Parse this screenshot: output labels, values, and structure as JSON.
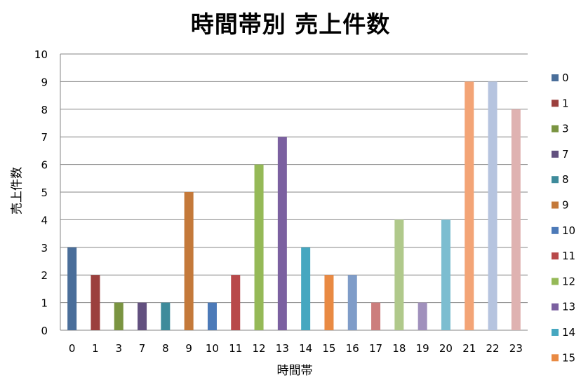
{
  "chart_data": {
    "type": "bar",
    "title": "時間帯別 売上件数",
    "xlabel": "時間帯",
    "ylabel": "売上件数",
    "ylim": [
      0,
      10
    ],
    "yticks": [
      "0",
      "1",
      "2",
      "3",
      "4",
      "5",
      "6",
      "7",
      "8",
      "9",
      "10"
    ],
    "grid": true,
    "legend_position": "right",
    "categories": [
      "0",
      "1",
      "3",
      "7",
      "8",
      "9",
      "10",
      "11",
      "12",
      "13",
      "14",
      "15",
      "16",
      "17",
      "18",
      "19",
      "20",
      "21",
      "22",
      "23"
    ],
    "values": [
      3,
      2,
      1,
      1,
      1,
      5,
      1,
      2,
      6,
      7,
      3,
      2,
      2,
      1,
      4,
      1,
      4,
      9,
      9,
      8
    ],
    "colors": [
      "#4a6e9a",
      "#9b3f3d",
      "#7a9441",
      "#62507f",
      "#3e8b9b",
      "#c4793a",
      "#4c7ab8",
      "#b8494a",
      "#95b957",
      "#7b60a0",
      "#46a7c0",
      "#e98a43",
      "#7f9cc8",
      "#cc7e7d",
      "#b0c98b",
      "#a090bc",
      "#7cbdd0",
      "#f3a476",
      "#b6c4df",
      "#dfb2b1"
    ],
    "legend": [
      "0",
      "1",
      "3",
      "7",
      "8",
      "9",
      "10",
      "11",
      "12",
      "13",
      "14",
      "15"
    ]
  }
}
